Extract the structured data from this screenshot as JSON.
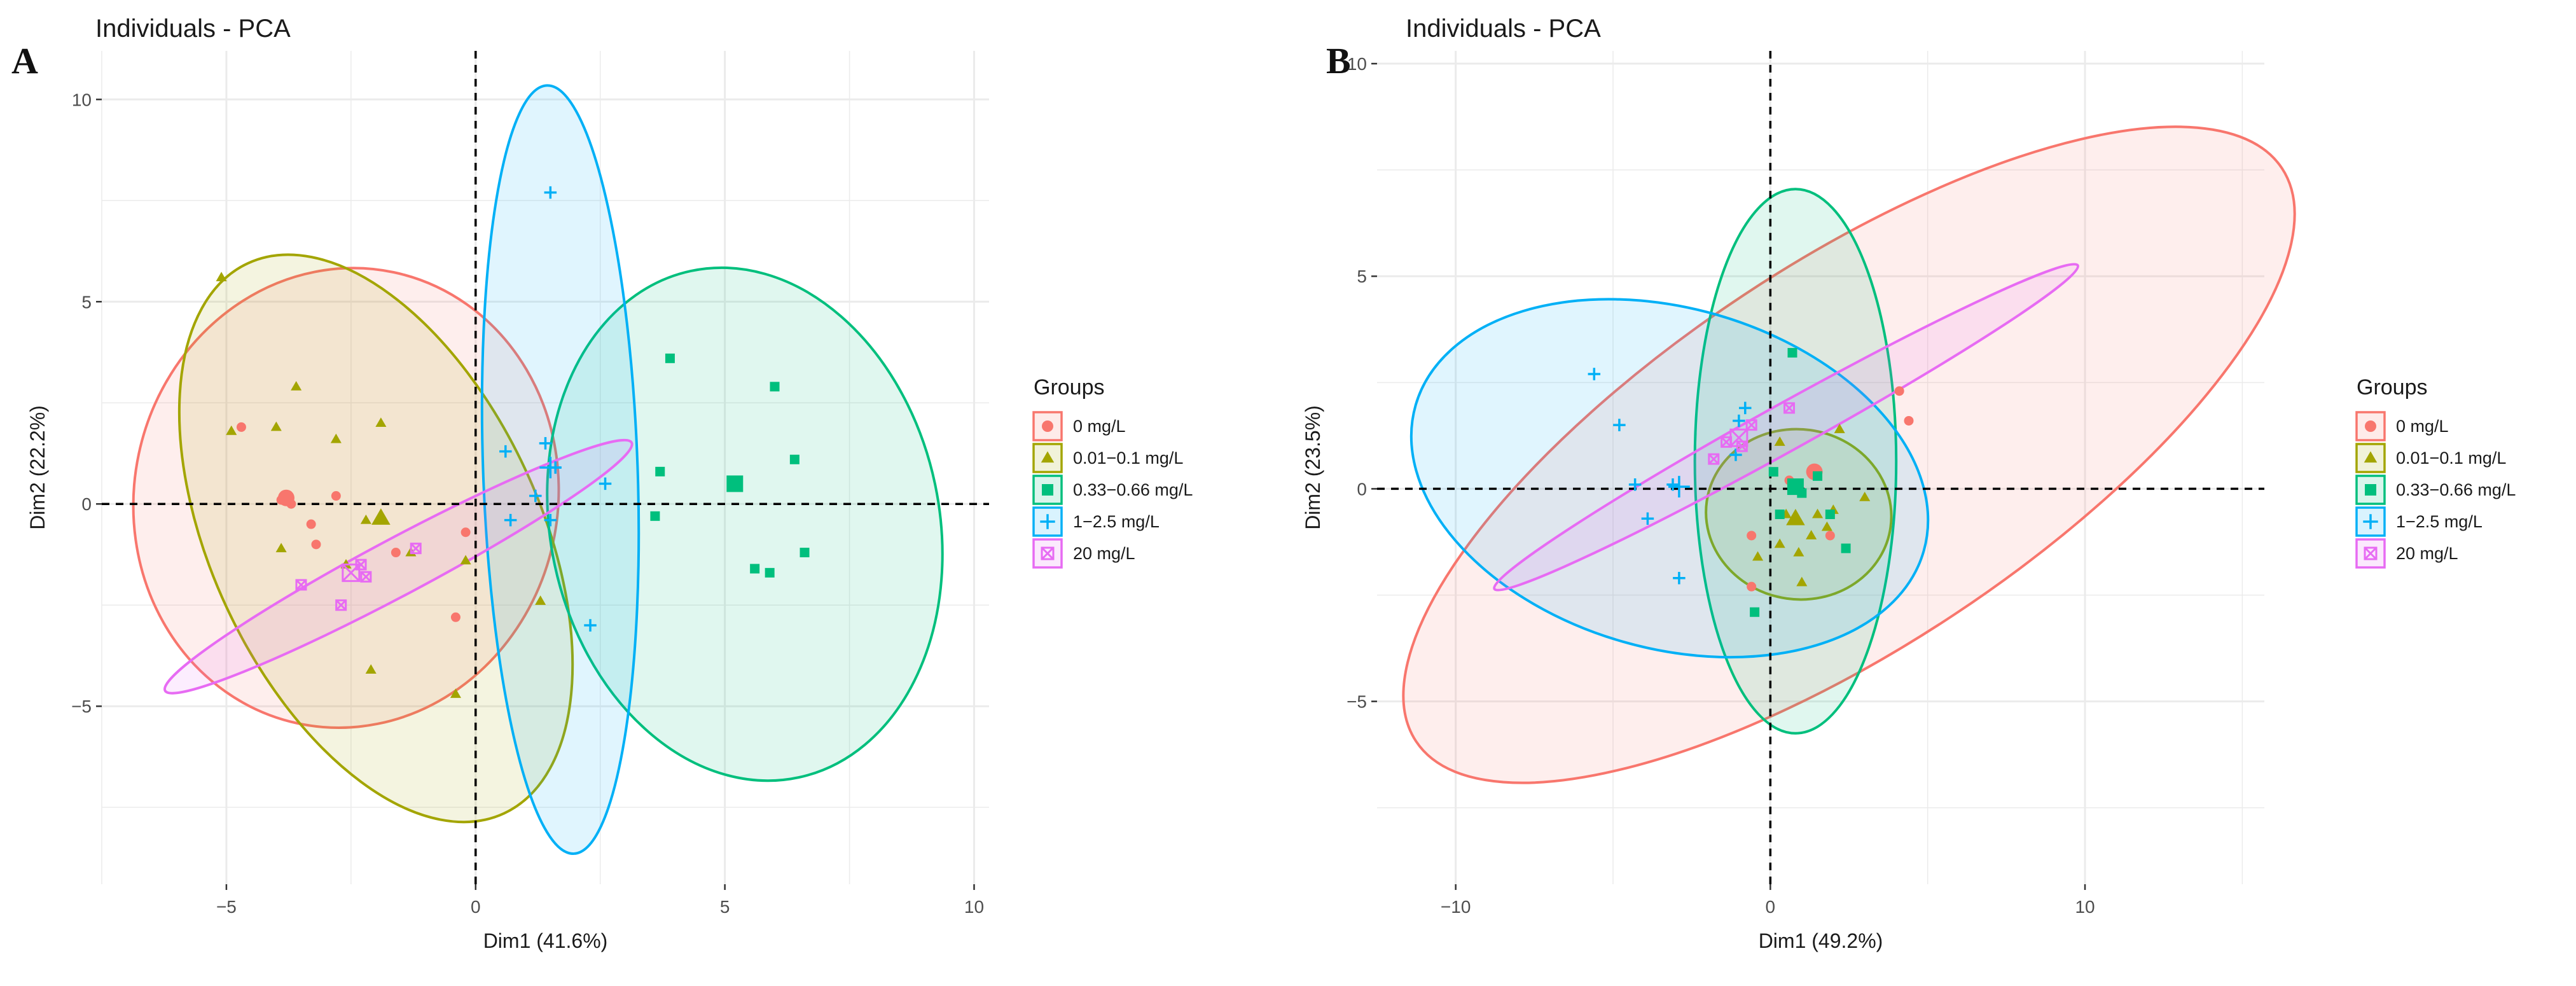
{
  "colors": {
    "g0": "#F8766D",
    "g1": "#A3A500",
    "g2": "#00BF7D",
    "g3": "#00B0F6",
    "g4": "#E76BF3",
    "grid": "#ebebeb",
    "axis_ref": "#000000",
    "text": "#1a1a1a",
    "tick": "#4d4d4d"
  },
  "chart_data": [
    {
      "panel": "A",
      "type": "scatter",
      "title": "Individuals - PCA",
      "xlabel": "Dim1 (41.6%)",
      "ylabel": "Dim2 (22.2%)",
      "xlim": [
        -7.5,
        10.3
      ],
      "ylim": [
        -9.4,
        11.2
      ],
      "xticks": [
        -5,
        0,
        5,
        10
      ],
      "yticks": [
        -5,
        0,
        5,
        10
      ],
      "grid": true,
      "legend": {
        "title": "Groups",
        "position": "right",
        "entries": [
          "0 mg/L",
          "0.01−0.1 mg/L",
          "0.33−0.66 mg/L",
          "1−2.5 mg/L",
          "20 mg/L"
        ]
      },
      "series": [
        {
          "name": "0 mg/L",
          "marker": "circle",
          "points": [
            [
              -4.7,
              1.9
            ],
            [
              -3.9,
              0.1
            ],
            [
              -3.7,
              0.0
            ],
            [
              -3.3,
              -0.5
            ],
            [
              -2.8,
              0.2
            ],
            [
              -1.6,
              -1.2
            ],
            [
              -3.2,
              -1.0
            ],
            [
              -0.2,
              -0.7
            ],
            [
              -0.4,
              -2.8
            ]
          ],
          "centroid": [
            -3.8,
            0.15
          ],
          "ellipse": {
            "cx": -2.6,
            "cy": 0.15,
            "rx": 4.25,
            "ry": 5.7,
            "angle_deg": -12
          }
        },
        {
          "name": "0.01−0.1 mg/L",
          "marker": "triangle",
          "points": [
            [
              -4.9,
              1.8
            ],
            [
              -4.0,
              1.9
            ],
            [
              -3.6,
              2.9
            ],
            [
              -2.8,
              1.6
            ],
            [
              -3.9,
              -1.1
            ],
            [
              -2.2,
              -0.4
            ],
            [
              -2.6,
              -1.5
            ],
            [
              -1.9,
              2.0
            ],
            [
              -1.3,
              -1.2
            ],
            [
              -0.2,
              -1.4
            ],
            [
              -0.4,
              -4.7
            ],
            [
              -2.1,
              -4.1
            ],
            [
              1.3,
              -2.4
            ],
            [
              -5.1,
              5.6
            ]
          ],
          "centroid": [
            -1.9,
            -0.35
          ],
          "ellipse": {
            "cx": -2.0,
            "cy": -0.85,
            "rx": 3.3,
            "ry": 7.5,
            "angle_deg": 25
          }
        },
        {
          "name": "0.33−0.66 mg/L",
          "marker": "square",
          "points": [
            [
              3.9,
              3.6
            ],
            [
              6.0,
              2.9
            ],
            [
              6.4,
              1.1
            ],
            [
              3.7,
              0.8
            ],
            [
              3.6,
              -0.3
            ],
            [
              5.6,
              -1.6
            ],
            [
              5.9,
              -1.7
            ],
            [
              6.6,
              -1.2
            ]
          ],
          "centroid": [
            5.2,
            0.5
          ],
          "ellipse": {
            "cx": 5.4,
            "cy": -0.5,
            "rx": 3.9,
            "ry": 6.4,
            "angle_deg": 12
          }
        },
        {
          "name": "1−2.5 mg/L",
          "marker": "plus",
          "points": [
            [
              0.6,
              1.3
            ],
            [
              1.4,
              1.5
            ],
            [
              1.6,
              0.9
            ],
            [
              2.6,
              0.5
            ],
            [
              0.7,
              -0.4
            ],
            [
              1.5,
              -0.4
            ],
            [
              2.3,
              -3.0
            ],
            [
              1.5,
              7.7
            ],
            [
              1.2,
              0.2
            ]
          ],
          "centroid": [
            1.5,
            0.9
          ],
          "ellipse": {
            "cx": 1.7,
            "cy": 0.85,
            "rx": 1.55,
            "ry": 9.5,
            "angle_deg": 2
          }
        },
        {
          "name": "20 mg/L",
          "marker": "boxcross",
          "points": [
            [
              -3.5,
              -2.0
            ],
            [
              -2.7,
              -2.5
            ],
            [
              -2.3,
              -1.5
            ],
            [
              -1.2,
              -1.1
            ],
            [
              -2.2,
              -1.8
            ]
          ],
          "centroid": [
            -2.5,
            -1.7
          ],
          "ellipse": {
            "cx": -1.55,
            "cy": -1.55,
            "rx": 5.3,
            "ry": 0.7,
            "angle_deg": 28
          }
        }
      ]
    },
    {
      "panel": "B",
      "type": "scatter",
      "title": "Individuals - PCA",
      "xlabel": "Dim1 (49.2%)",
      "ylabel": "Dim2 (23.5%)",
      "xlim": [
        -12.5,
        15.7
      ],
      "ylim": [
        -9.3,
        10.3
      ],
      "xticks": [
        -10,
        0,
        10
      ],
      "yticks": [
        -5,
        0,
        5,
        10
      ],
      "grid": true,
      "legend": {
        "title": "Groups",
        "position": "right",
        "entries": [
          "0 mg/L",
          "0.01−0.1 mg/L",
          "0.33−0.66 mg/L",
          "1−2.5 mg/L",
          "20 mg/L"
        ]
      },
      "series": [
        {
          "name": "0 mg/L",
          "marker": "circle",
          "points": [
            [
              4.1,
              2.3
            ],
            [
              4.4,
              1.6
            ],
            [
              1.5,
              0.4
            ],
            [
              1.9,
              -1.1
            ],
            [
              -0.6,
              -1.1
            ],
            [
              -0.6,
              -2.3
            ],
            [
              0.6,
              0.2
            ]
          ],
          "centroid": [
            1.4,
            0.4
          ],
          "ellipse": {
            "cx": 2.5,
            "cy": 0.8,
            "rx": 16.5,
            "ry": 4.5,
            "angle_deg": 33.5
          }
        },
        {
          "name": "0.01−0.1 mg/L",
          "marker": "triangle",
          "points": [
            [
              2.2,
              1.4
            ],
            [
              3.0,
              -0.2
            ],
            [
              2.0,
              -0.5
            ],
            [
              1.3,
              -1.1
            ],
            [
              0.9,
              -1.5
            ],
            [
              0.3,
              -1.3
            ],
            [
              -0.4,
              -1.6
            ],
            [
              1.0,
              -2.2
            ],
            [
              1.5,
              -0.6
            ],
            [
              0.5,
              -0.6
            ],
            [
              1.8,
              -0.9
            ],
            [
              0.3,
              1.1
            ]
          ],
          "centroid": [
            0.8,
            -0.7
          ],
          "ellipse": {
            "cx": 0.9,
            "cy": -0.6,
            "rx": 2.95,
            "ry": 2.0,
            "angle_deg": -8
          }
        },
        {
          "name": "0.33−0.66 mg/L",
          "marker": "square",
          "points": [
            [
              0.7,
              3.2
            ],
            [
              0.1,
              0.4
            ],
            [
              1.5,
              0.3
            ],
            [
              0.3,
              -0.6
            ],
            [
              1.9,
              -0.6
            ],
            [
              2.4,
              -1.4
            ],
            [
              1.0,
              -0.1
            ],
            [
              -0.5,
              -2.9
            ],
            [
              0.7,
              0.1
            ]
          ],
          "centroid": [
            0.8,
            0.05
          ],
          "ellipse": {
            "cx": 0.8,
            "cy": 0.65,
            "rx": 3.2,
            "ry": 6.4,
            "angle_deg": 0
          }
        },
        {
          "name": "1−2.5 mg/L",
          "marker": "plus",
          "points": [
            [
              -5.6,
              2.7
            ],
            [
              -4.8,
              1.5
            ],
            [
              -4.3,
              0.1
            ],
            [
              -3.9,
              -0.7
            ],
            [
              -3.1,
              0.1
            ],
            [
              -2.9,
              -2.1
            ],
            [
              -1.0,
              1.6
            ],
            [
              -0.8,
              1.9
            ],
            [
              -1.1,
              0.8
            ]
          ],
          "centroid": [
            -2.9,
            0.05
          ],
          "ellipse": {
            "cx": -3.2,
            "cy": 0.25,
            "rx": 8.4,
            "ry": 4.0,
            "angle_deg": -16
          }
        },
        {
          "name": "20 mg/L",
          "marker": "boxcross",
          "points": [
            [
              -1.8,
              0.7
            ],
            [
              -1.4,
              1.1
            ],
            [
              -0.6,
              1.5
            ],
            [
              0.6,
              1.9
            ],
            [
              -0.9,
              1.0
            ]
          ],
          "centroid": [
            -1.0,
            1.2
          ],
          "ellipse": {
            "cx": 0.5,
            "cy": 1.45,
            "rx": 10.6,
            "ry": 0.55,
            "angle_deg": 29
          }
        }
      ]
    }
  ]
}
